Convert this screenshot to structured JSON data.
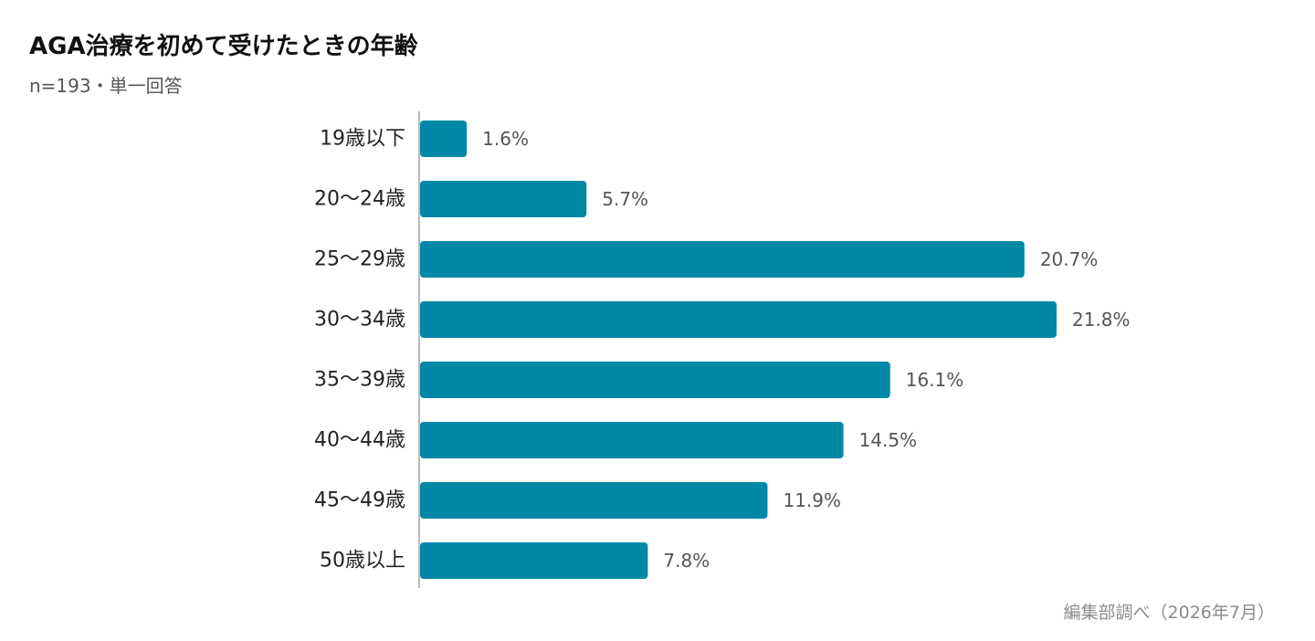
{
  "header": {
    "title": "AGA治療を初めて受けたときの年齢",
    "subtitle": "n=193・単一回答"
  },
  "footer": {
    "source": "編集部調べ（2026年7月）"
  },
  "chart_data": {
    "type": "bar",
    "orientation": "horizontal",
    "title": "AGA治療を初めて受けたときの年齢",
    "subtitle": "n=193・単一回答",
    "categories": [
      "19歳以下",
      "20〜24歳",
      "25〜29歳",
      "30〜34歳",
      "35〜39歳",
      "40〜44歳",
      "45〜49歳",
      "50歳以上"
    ],
    "values": [
      1.6,
      5.7,
      20.7,
      21.8,
      16.1,
      14.5,
      11.9,
      7.8
    ],
    "value_labels": [
      "1.6%",
      "5.7%",
      "20.7%",
      "21.8%",
      "16.1%",
      "14.5%",
      "11.9%",
      "7.8%"
    ],
    "unit": "%",
    "bar_color": "#0088a6",
    "axis_color": "#bbbbbb",
    "grid": false,
    "legend": "none",
    "xlim": [
      0,
      22
    ]
  }
}
